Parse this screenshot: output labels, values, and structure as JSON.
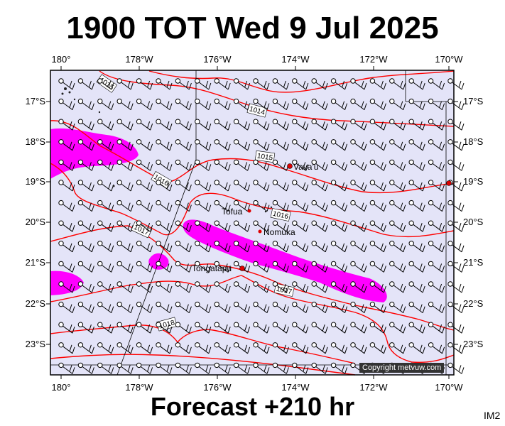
{
  "title": "1900 TOT Wed 9 Jul 2025",
  "footer": "Forecast +210 hr",
  "image_code": "IM2",
  "copyright": "Copyright metvuw.com",
  "lon_labels": [
    "180°",
    "178°W",
    "176°W",
    "174°W",
    "172°W",
    "170°W"
  ],
  "lat_labels": [
    "17°S",
    "18°S",
    "19°S",
    "20°S",
    "21°S",
    "22°S",
    "23°S"
  ],
  "isobar_labels": [
    "1015",
    "1014",
    "1015",
    "1016",
    "1016",
    "1017",
    "1017",
    "1018"
  ],
  "places": [
    {
      "name": "Vava'u"
    },
    {
      "name": "Tofua"
    },
    {
      "name": "Nomuka"
    },
    {
      "name": "Tongatapu"
    }
  ],
  "colors": {
    "ocean": "#e4e4f8",
    "isobar": "#ff0000",
    "rain": "#ff00ff",
    "frame": "#000000"
  }
}
